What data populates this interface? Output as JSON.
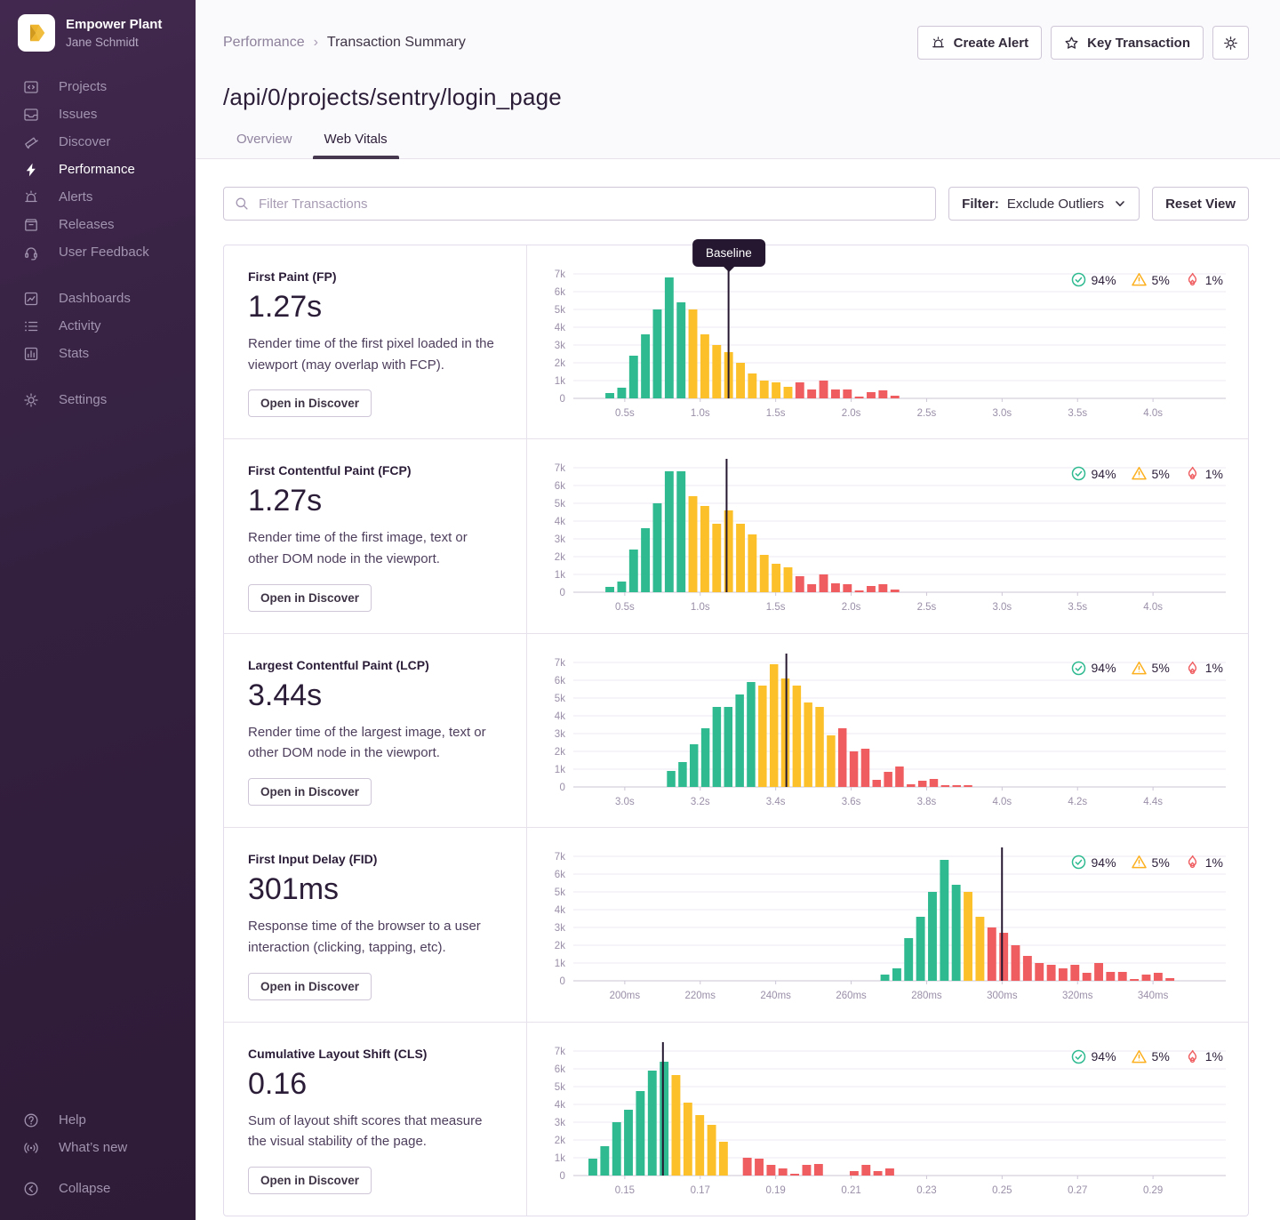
{
  "sidebar": {
    "org": {
      "name": "Empower Plant",
      "user": "Jane Schmidt"
    },
    "primary": [
      {
        "id": "projects",
        "label": "Projects",
        "active": false
      },
      {
        "id": "issues",
        "label": "Issues",
        "active": false
      },
      {
        "id": "discover",
        "label": "Discover",
        "active": false
      },
      {
        "id": "performance",
        "label": "Performance",
        "active": true
      },
      {
        "id": "alerts",
        "label": "Alerts",
        "active": false
      },
      {
        "id": "releases",
        "label": "Releases",
        "active": false
      },
      {
        "id": "user-feedback",
        "label": "User Feedback",
        "active": false
      }
    ],
    "secondary": [
      {
        "id": "dashboards",
        "label": "Dashboards",
        "active": false
      },
      {
        "id": "activity",
        "label": "Activity",
        "active": false
      },
      {
        "id": "stats",
        "label": "Stats",
        "active": false
      }
    ],
    "tertiary": [
      {
        "id": "settings",
        "label": "Settings",
        "active": false
      }
    ],
    "footer": [
      {
        "id": "help",
        "label": "Help",
        "active": false
      },
      {
        "id": "whats-new",
        "label": "What’s new",
        "active": false
      }
    ],
    "collapse": {
      "id": "collapse",
      "label": "Collapse",
      "active": false
    }
  },
  "header": {
    "breadcrumb_parent": "Performance",
    "breadcrumb_separator": "›",
    "breadcrumb_current": "Transaction Summary",
    "actions": {
      "create_alert": "Create Alert",
      "key_transaction": "Key Transaction"
    },
    "title": "/api/0/projects/sentry/login_page",
    "tabs": [
      {
        "id": "overview",
        "label": "Overview",
        "active": false
      },
      {
        "id": "web-vitals",
        "label": "Web Vitals",
        "active": true
      }
    ]
  },
  "toolbar": {
    "search_placeholder": "Filter Transactions",
    "filter_label": "Filter:",
    "filter_value": "Exclude Outliers",
    "reset_label": "Reset View"
  },
  "colors": {
    "good": "#2fba90",
    "meh": "#fcc12a",
    "poor": "#ef5d60",
    "baseline": "#251730",
    "warn_icon": "#fcb01f"
  },
  "baseline_tooltip": "Baseline",
  "open_in_discover": "Open in Discover",
  "percentiles": [
    {
      "type": "good",
      "icon": "check-circle-icon",
      "label": "94%"
    },
    {
      "type": "meh",
      "icon": "warning-triangle-icon",
      "label": "5%"
    },
    {
      "type": "poor",
      "icon": "flame-icon",
      "label": "1%"
    }
  ],
  "vitals": [
    {
      "id": "fp",
      "name": "First Paint (FP)",
      "value": "1.27s",
      "description": "Render time of the first pixel loaded in the viewport (may overlap with FCP).",
      "show_baseline_tooltip": true,
      "chart_data": {
        "type": "bar",
        "title": "First Paint distribution",
        "ymax": 7000,
        "y_ticks": [
          "0",
          "1k",
          "2k",
          "3k",
          "4k",
          "5k",
          "6k",
          "7k"
        ],
        "x_ticks": [
          "0.5s",
          "1.0s",
          "1.5s",
          "2.0s",
          "2.5s",
          "3.0s",
          "3.5s",
          "4.0s"
        ],
        "tick_start_frac": 0.0789,
        "tick_step_frac": 0.11565,
        "start_frac": 0.056,
        "pitch_frac": 0.0182,
        "baseline_frac": 0.238,
        "segments": {
          "good": 7,
          "meh": 9,
          "poor": 9
        },
        "values": [
          300,
          600,
          2400,
          3600,
          5000,
          6800,
          5400,
          5000,
          3600,
          3000,
          2600,
          2000,
          1400,
          1000,
          900,
          650,
          900,
          500,
          1000,
          500,
          500,
          100,
          350,
          450,
          150
        ]
      }
    },
    {
      "id": "fcp",
      "name": "First Contentful Paint (FCP)",
      "value": "1.27s",
      "description": "Render time of the first image, text or other DOM node in the viewport.",
      "show_baseline_tooltip": false,
      "chart_data": {
        "type": "bar",
        "title": "First Contentful Paint distribution",
        "ymax": 7000,
        "y_ticks": [
          "0",
          "1k",
          "2k",
          "3k",
          "4k",
          "5k",
          "6k",
          "7k"
        ],
        "x_ticks": [
          "0.5s",
          "1.0s",
          "1.5s",
          "2.0s",
          "2.5s",
          "3.0s",
          "3.5s",
          "4.0s"
        ],
        "tick_start_frac": 0.0789,
        "tick_step_frac": 0.11565,
        "start_frac": 0.056,
        "pitch_frac": 0.0182,
        "baseline_frac": 0.235,
        "segments": {
          "good": 7,
          "meh": 9,
          "poor": 9
        },
        "values": [
          300,
          600,
          2400,
          3600,
          5000,
          6800,
          6800,
          5400,
          4850,
          3850,
          4600,
          3850,
          3250,
          2100,
          1600,
          1400,
          900,
          450,
          1000,
          500,
          450,
          100,
          350,
          450,
          150
        ]
      }
    },
    {
      "id": "lcp",
      "name": "Largest Contentful Paint (LCP)",
      "value": "3.44s",
      "description": "Render time of the largest image, text or other DOM node in the viewport.",
      "show_baseline_tooltip": false,
      "chart_data": {
        "type": "bar",
        "title": "Largest Contentful Paint distribution",
        "ymax": 7000,
        "y_ticks": [
          "0",
          "1k",
          "2k",
          "3k",
          "4k",
          "5k",
          "6k",
          "7k"
        ],
        "x_ticks": [
          "3.0s",
          "3.2s",
          "3.4s",
          "3.6s",
          "3.8s",
          "4.0s",
          "4.2s",
          "4.4s"
        ],
        "tick_start_frac": 0.0789,
        "tick_step_frac": 0.11565,
        "start_frac": 0.15,
        "pitch_frac": 0.0175,
        "baseline_frac": 0.3265,
        "segments": {
          "good": 8,
          "meh": 7,
          "poor": 12
        },
        "values": [
          900,
          1400,
          2400,
          3300,
          4500,
          4500,
          5200,
          5900,
          5700,
          6900,
          6100,
          5700,
          4750,
          4500,
          2900,
          3300,
          2000,
          2150,
          400,
          850,
          1150,
          150,
          350,
          450,
          100,
          100,
          100
        ]
      }
    },
    {
      "id": "fid",
      "name": "First Input Delay (FID)",
      "value": "301ms",
      "description": "Response time of the browser to a user interaction (clicking, tapping, etc).",
      "show_baseline_tooltip": false,
      "chart_data": {
        "type": "bar",
        "title": "First Input Delay distribution",
        "ymax": 7000,
        "y_ticks": [
          "0",
          "1k",
          "2k",
          "3k",
          "4k",
          "5k",
          "6k",
          "7k"
        ],
        "x_ticks": [
          "200ms",
          "220ms",
          "240ms",
          "260ms",
          "280ms",
          "300ms",
          "320ms",
          "340ms"
        ],
        "tick_start_frac": 0.0789,
        "tick_step_frac": 0.11565,
        "start_frac": 0.4776,
        "pitch_frac": 0.0182,
        "baseline_frac": 0.657,
        "segments": {
          "good": 7,
          "meh": 2,
          "poor": 16
        },
        "values": [
          350,
          700,
          2400,
          3600,
          5000,
          6800,
          5400,
          5000,
          3600,
          3000,
          2700,
          2000,
          1400,
          1000,
          900,
          700,
          900,
          450,
          1000,
          500,
          500,
          100,
          350,
          450,
          150
        ]
      }
    },
    {
      "id": "cls",
      "name": "Cumulative Layout Shift (CLS)",
      "value": "0.16",
      "description": "Sum of layout shift scores that measure the visual stability of the page.",
      "show_baseline_tooltip": false,
      "chart_data": {
        "type": "bar",
        "title": "Cumulative Layout Shift distribution",
        "ymax": 7000,
        "y_ticks": [
          "0",
          "1k",
          "2k",
          "3k",
          "4k",
          "5k",
          "6k",
          "7k"
        ],
        "x_ticks": [
          "0.15",
          "0.17",
          "0.19",
          "0.21",
          "0.23",
          "0.25",
          "0.27",
          "0.29"
        ],
        "tick_start_frac": 0.0789,
        "tick_step_frac": 0.11565,
        "start_frac": 0.03,
        "pitch_frac": 0.0182,
        "baseline_frac": 0.1374,
        "segments": {
          "good": 7,
          "meh": 5,
          "poor": 14
        },
        "values": [
          950,
          1650,
          3000,
          3700,
          4750,
          5900,
          6400,
          5650,
          4100,
          3400,
          2850,
          1900,
          0,
          1000,
          950,
          600,
          400,
          100,
          600,
          650,
          0,
          0,
          250,
          600,
          250,
          400
        ]
      }
    }
  ]
}
